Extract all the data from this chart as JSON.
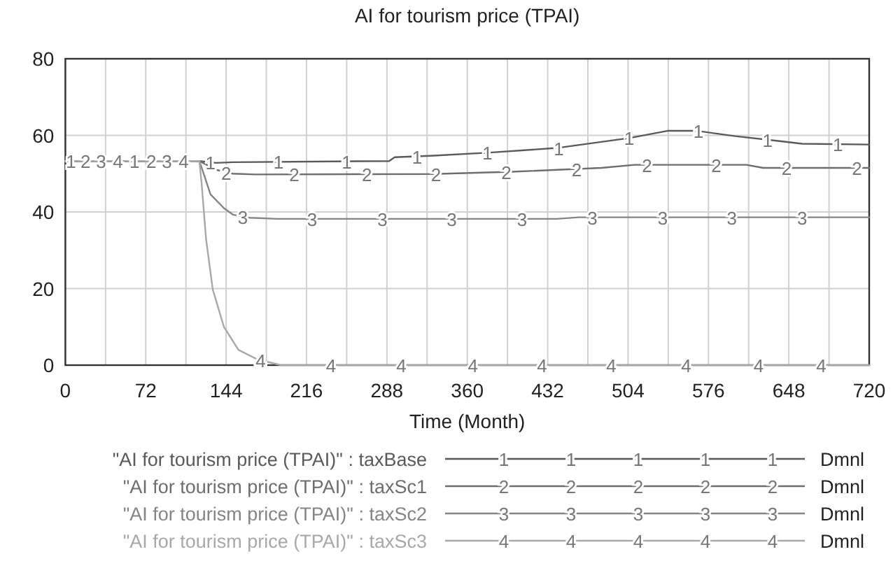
{
  "chart_data": {
    "type": "line",
    "title": "AI for tourism price (TPAI)",
    "xlabel": "Time (Month)",
    "xlim": [
      0,
      720
    ],
    "xticks": [
      0,
      72,
      144,
      216,
      288,
      360,
      432,
      504,
      576,
      648,
      720
    ],
    "ylim": [
      0,
      80
    ],
    "yticks": [
      0,
      20,
      40,
      60,
      80
    ],
    "grid": true,
    "legend": "bottom",
    "line_style": "solid",
    "marker": "none",
    "series": [
      {
        "name": "\"AI for tourism price (TPAI)\" : taxBase",
        "color": "#5a5a5a",
        "x": [
          0,
          120,
          135,
          150,
          290,
          295,
          330,
          380,
          440,
          505,
          540,
          565,
          600,
          640,
          660,
          720
        ],
        "values": [
          53.3,
          53.3,
          52.8,
          53,
          53.3,
          54.3,
          54.7,
          55.5,
          56.7,
          59.3,
          61.2,
          61.2,
          59.8,
          58.5,
          57.8,
          57.6
        ]
      },
      {
        "name": "\"AI for tourism price (TPAI)\" : taxSc1",
        "color": "#6e6e6e",
        "x": [
          0,
          120,
          135,
          150,
          170,
          330,
          400,
          480,
          510,
          610,
          625,
          720
        ],
        "values": [
          53.3,
          53.3,
          51,
          50,
          49.8,
          49.9,
          50.5,
          51.5,
          52.3,
          52.3,
          51.5,
          51.5
        ]
      },
      {
        "name": "\"AI for tourism price (TPAI)\" : taxSc2",
        "color": "#858585",
        "x": [
          0,
          120,
          125,
          130,
          142,
          150,
          165,
          190,
          440,
          460,
          720
        ],
        "values": [
          53.3,
          53.3,
          49,
          44.6,
          41,
          39.3,
          38.5,
          38.2,
          38.2,
          38.6,
          38.6
        ]
      },
      {
        "name": "\"AI for tourism price (TPAI)\" : taxSc3",
        "color": "#a8a8a8",
        "x": [
          0,
          120,
          122,
          126,
          132,
          142,
          155,
          172,
          193,
          720
        ],
        "values": [
          53.3,
          53.3,
          47.6,
          33,
          19.8,
          10,
          4,
          1.5,
          0,
          0
        ]
      }
    ],
    "annotations": [
      {
        "text": "1",
        "x": 5,
        "y": 53.3
      },
      {
        "text": "2",
        "x": 18,
        "y": 53.3
      },
      {
        "text": "3",
        "x": 32,
        "y": 53.3
      },
      {
        "text": "4",
        "x": 47,
        "y": 53.3
      },
      {
        "text": "1",
        "x": 62,
        "y": 53.3
      },
      {
        "text": "2",
        "x": 77,
        "y": 53.3
      },
      {
        "text": "3",
        "x": 91,
        "y": 53.3
      },
      {
        "text": "4",
        "x": 106,
        "y": 53.3
      },
      {
        "text": "1",
        "x": 130,
        "y": 53
      },
      {
        "text": "1",
        "x": 191,
        "y": 53.1
      },
      {
        "text": "1",
        "x": 252,
        "y": 53.2
      },
      {
        "text": "1",
        "x": 315,
        "y": 54.5
      },
      {
        "text": "1",
        "x": 378,
        "y": 55.5
      },
      {
        "text": "1",
        "x": 442,
        "y": 56.7
      },
      {
        "text": "1",
        "x": 505,
        "y": 59.3
      },
      {
        "text": "1",
        "x": 567,
        "y": 61.1
      },
      {
        "text": "1",
        "x": 629,
        "y": 58.9
      },
      {
        "text": "1",
        "x": 692,
        "y": 57.7
      },
      {
        "text": "2",
        "x": 144,
        "y": 50.3
      },
      {
        "text": "2",
        "x": 205,
        "y": 49.8
      },
      {
        "text": "2",
        "x": 270,
        "y": 49.9
      },
      {
        "text": "2",
        "x": 332,
        "y": 49.9
      },
      {
        "text": "2",
        "x": 395,
        "y": 50.5
      },
      {
        "text": "2",
        "x": 458,
        "y": 51.2
      },
      {
        "text": "2",
        "x": 521,
        "y": 52.3
      },
      {
        "text": "2",
        "x": 583,
        "y": 52.3
      },
      {
        "text": "2",
        "x": 646,
        "y": 51.5
      },
      {
        "text": "2",
        "x": 709,
        "y": 51.5
      },
      {
        "text": "3",
        "x": 159,
        "y": 38.8
      },
      {
        "text": "3",
        "x": 221,
        "y": 38.2
      },
      {
        "text": "3",
        "x": 284,
        "y": 38.2
      },
      {
        "text": "3",
        "x": 346,
        "y": 38.2
      },
      {
        "text": "3",
        "x": 409,
        "y": 38.2
      },
      {
        "text": "3",
        "x": 472,
        "y": 38.6
      },
      {
        "text": "3",
        "x": 535,
        "y": 38.6
      },
      {
        "text": "3",
        "x": 597,
        "y": 38.6
      },
      {
        "text": "3",
        "x": 660,
        "y": 38.6
      },
      {
        "text": "4",
        "x": 175,
        "y": 1.3
      },
      {
        "text": "4",
        "x": 238,
        "y": 0
      },
      {
        "text": "4",
        "x": 301,
        "y": 0
      },
      {
        "text": "4",
        "x": 365,
        "y": 0
      },
      {
        "text": "4",
        "x": 427,
        "y": 0
      },
      {
        "text": "4",
        "x": 489,
        "y": 0
      },
      {
        "text": "4",
        "x": 556,
        "y": 0
      },
      {
        "text": "4",
        "x": 621,
        "y": 0
      },
      {
        "text": "4",
        "x": 677,
        "y": 0
      },
      "Dmnl",
      "Dmnl",
      "Dmnl",
      "Dmnl"
    ]
  }
}
